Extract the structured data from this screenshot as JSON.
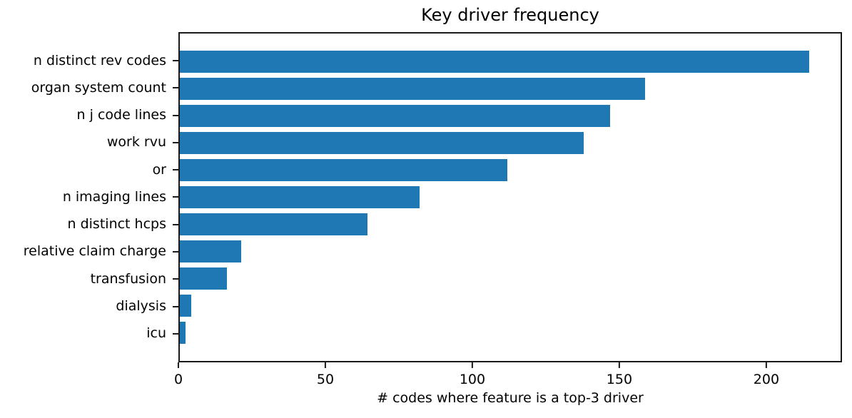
{
  "chart_data": {
    "type": "bar",
    "orientation": "horizontal",
    "title": "Key driver frequency",
    "xlabel": "# codes where feature is a top-3 driver",
    "ylabel": "",
    "categories": [
      "n distinct rev codes",
      "organ system count",
      "n j code lines",
      "work rvu",
      "or",
      "n imaging lines",
      "n distinct hcps",
      "relative claim charge",
      "transfusion",
      "dialysis",
      "icu"
    ],
    "values": [
      215,
      159,
      147,
      138,
      112,
      82,
      64,
      21,
      16,
      4,
      2
    ],
    "xticks": [
      0,
      50,
      100,
      150,
      200
    ],
    "xlim": [
      0,
      225.75
    ],
    "bar_color": "#1f77b4",
    "spine_color": "#1a1a1a",
    "background_color": "#ffffff",
    "grid": false,
    "legend_position": "none"
  }
}
